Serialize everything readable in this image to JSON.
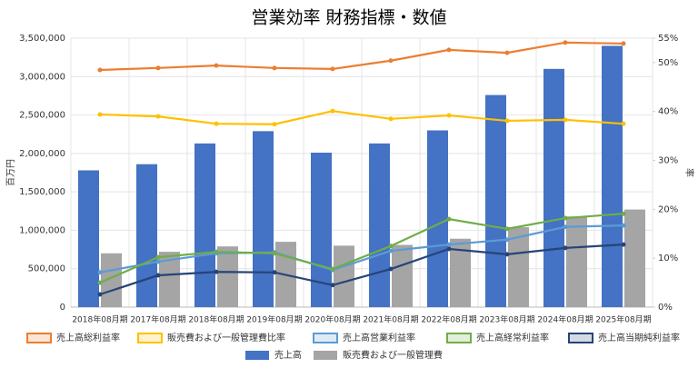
{
  "chart_data": {
    "type": "bar-line",
    "title": "営業効率 財務指標・数値",
    "y_label": "百万円",
    "y2_label": "率",
    "categories": [
      "2018年08月期",
      "2017年08月期",
      "2018年08月期",
      "2019年08月期",
      "2020年08月期",
      "2021年08月期",
      "2022年08月期",
      "2023年08月期",
      "2024年08月期",
      "2025年08月期"
    ],
    "ylim": [
      0,
      3500000
    ],
    "yticks": [
      0,
      {
        "value": 500000,
        "label": "500,000"
      },
      {
        "value": 1000000,
        "label": "1,000,000"
      },
      {
        "value": 1500000,
        "label": "1,500,000"
      },
      {
        "value": 2000000,
        "label": "2,000,000"
      },
      {
        "value": 2500000,
        "label": "2,500,000"
      },
      {
        "value": 3000000,
        "label": "3,000,000"
      },
      {
        "value": 3500000,
        "label": "3,500,000"
      }
    ],
    "y2lim": [
      0,
      55
    ],
    "y2ticks": [
      {
        "value": 0,
        "label": "0%"
      },
      {
        "value": 10,
        "label": "10%"
      },
      {
        "value": 20,
        "label": "20%"
      },
      {
        "value": 30,
        "label": "30%"
      },
      {
        "value": 40,
        "label": "40%"
      },
      {
        "value": 50,
        "label": "50%"
      },
      {
        "value": 55,
        "label": "55%"
      }
    ],
    "grid": true,
    "series": [
      {
        "name": "売上高総利益率",
        "kind": "line",
        "axis": "y2",
        "color": "#ed7d31",
        "values": [
          48.5,
          48.9,
          49.4,
          48.9,
          48.7,
          50.4,
          52.6,
          52.0,
          54.1,
          53.9
        ]
      },
      {
        "name": "販売費および一般管理費比率",
        "kind": "line",
        "axis": "y2",
        "color": "#ffc000",
        "values": [
          39.4,
          39.0,
          37.5,
          37.4,
          40.1,
          38.5,
          39.2,
          38.1,
          38.3,
          37.5
        ]
      },
      {
        "name": "売上高営業利益率",
        "kind": "line",
        "axis": "y2",
        "color": "#5b9bd5",
        "values": [
          7.1,
          9.3,
          11.0,
          11.2,
          7.6,
          11.5,
          12.8,
          13.8,
          16.4,
          16.7
        ]
      },
      {
        "name": "売上高経常利益率",
        "kind": "line",
        "axis": "y2",
        "color": "#70ad47",
        "values": [
          5.0,
          10.2,
          11.3,
          11.0,
          7.8,
          12.5,
          18.0,
          16.0,
          18.2,
          19.1
        ]
      },
      {
        "name": "売上高当期純利益率",
        "kind": "line",
        "axis": "y2",
        "color": "#264478",
        "values": [
          2.6,
          6.5,
          7.2,
          7.1,
          4.5,
          7.8,
          11.9,
          10.8,
          12.1,
          12.8
        ]
      },
      {
        "name": "売上高",
        "kind": "bar",
        "color": "#4472c4",
        "values": [
          1780000,
          1860000,
          2130000,
          2290000,
          2010000,
          2130000,
          2300000,
          2760000,
          3100000,
          3400000
        ]
      },
      {
        "name": "販売費および一般管理費",
        "kind": "bar",
        "color": "#a5a5a5",
        "values": [
          700000,
          720000,
          790000,
          850000,
          800000,
          810000,
          890000,
          1040000,
          1180000,
          1270000
        ]
      }
    ]
  }
}
